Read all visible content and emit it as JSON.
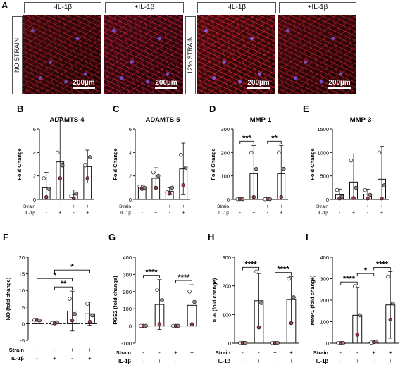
{
  "panel_a": {
    "letter": "A",
    "conditions": [
      "-IL-1β",
      "+IL-1β",
      "-IL-1β",
      "+IL-1β"
    ],
    "row_labels": [
      "NO STRAIN",
      "12% STRAIN"
    ],
    "scale_bar_text": "200µm"
  },
  "chart_data": [
    {
      "letter": "B",
      "type": "bar",
      "title": "ADAMTS-4",
      "ylabel": "Fold Change",
      "ylim": [
        0,
        6
      ],
      "yticks": [
        0,
        2,
        4,
        6
      ],
      "values": [
        1,
        3.2,
        0.4,
        2.8
      ],
      "err": [
        1.3,
        3.8,
        0.4,
        1.4
      ],
      "points": [
        [
          1.8,
          0.2,
          0.9
        ],
        [
          4.0,
          1.8,
          2.9
        ],
        [
          0.3,
          0.1,
          0.5
        ],
        [
          2.9,
          1.8,
          3.6
        ]
      ],
      "rows": [
        {
          "label": "Strain",
          "signs": [
            "-",
            "-",
            "+",
            "+"
          ]
        },
        {
          "label": "IL-1β",
          "signs": [
            "-",
            "+",
            "-",
            "+"
          ]
        }
      ],
      "sig": []
    },
    {
      "letter": "C",
      "type": "bar",
      "title": "ADAMTS-5",
      "ylabel": "Fold Change",
      "ylim": [
        0,
        6
      ],
      "yticks": [
        0,
        2,
        4,
        6
      ],
      "values": [
        1,
        1.8,
        0.7,
        2.6
      ],
      "err": [
        0.2,
        0.9,
        0.3,
        2.2
      ],
      "points": [
        [
          1.1,
          0.9,
          1.0
        ],
        [
          2.3,
          1.0,
          2.0
        ],
        [
          0.6,
          0.5,
          1.0
        ],
        [
          3.8,
          1.2,
          2.7
        ]
      ],
      "rows": [
        {
          "label": "Strain",
          "signs": [
            "-",
            "-",
            "+",
            "+"
          ]
        },
        {
          "label": "IL-1β",
          "signs": [
            "-",
            "+",
            "-",
            "+"
          ]
        }
      ],
      "sig": []
    },
    {
      "letter": "D",
      "type": "bar",
      "title": "MMP-1",
      "ylabel": "Fold Change",
      "ylim": [
        0,
        300
      ],
      "yticks": [
        0,
        100,
        200,
        300
      ],
      "values": [
        1,
        110,
        1,
        110
      ],
      "err": [
        3,
        120,
        3,
        120
      ],
      "points": [
        [
          1,
          2,
          1
        ],
        [
          200,
          10,
          130
        ],
        [
          1,
          2,
          1
        ],
        [
          200,
          10,
          130
        ]
      ],
      "rows": [
        {
          "label": "Strain",
          "signs": [
            "-",
            "-",
            "+",
            "+"
          ]
        },
        {
          "label": "IL-1β",
          "signs": [
            "-",
            "+",
            "-",
            "+"
          ]
        }
      ],
      "sig": [
        {
          "from": 0,
          "to": 1,
          "label": "***"
        },
        {
          "from": 2,
          "to": 3,
          "label": "**"
        }
      ]
    },
    {
      "letter": "E",
      "type": "bar",
      "title": "MMP-3",
      "ylabel": "Fold Change",
      "ylim": [
        0,
        1500
      ],
      "yticks": [
        0,
        500,
        1000,
        1500
      ],
      "values": [
        100,
        370,
        110,
        430
      ],
      "err": [
        120,
        600,
        110,
        700
      ],
      "points": [
        [
          200,
          20,
          60
        ],
        [
          830,
          30,
          250
        ],
        [
          200,
          20,
          100
        ],
        [
          1000,
          20,
          300
        ]
      ],
      "rows": [
        {
          "label": "Strain",
          "signs": [
            "-",
            "-",
            "+",
            "+"
          ]
        },
        {
          "label": "IL-1β",
          "signs": [
            "-",
            "+",
            "-",
            "+"
          ]
        }
      ],
      "sig": []
    },
    {
      "letter": "F",
      "type": "bar",
      "title": "",
      "ylabel": "NO (fold change)",
      "ylim": [
        -5,
        20
      ],
      "yticks": [
        -5,
        0,
        5,
        10,
        15,
        20
      ],
      "values": [
        1,
        0.2,
        3.8,
        3
      ],
      "err": [
        0.3,
        0.3,
        6,
        3.5
      ],
      "points": [
        [
          1.2,
          1.2,
          1.0
        ],
        [
          0.2,
          0.1,
          0.4
        ],
        [
          7.5,
          1.0,
          2.9
        ],
        [
          6.0,
          0.6,
          2.5
        ]
      ],
      "rows": [
        {
          "label": "Strain",
          "signs": [
            "-",
            "-",
            "+",
            "+"
          ]
        },
        {
          "label": "IL-1β",
          "signs": [
            "-",
            "+",
            "-",
            "+"
          ]
        }
      ],
      "sig": [
        {
          "from": 1,
          "to": 2,
          "label": "**",
          "level": 0
        },
        {
          "from": 0,
          "to": 2,
          "label": "*",
          "level": 1
        },
        {
          "from": 1,
          "to": 3,
          "label": "*",
          "level": 2
        }
      ]
    },
    {
      "letter": "G",
      "type": "bar",
      "title": "",
      "ylabel": "PGE2 (fold change)",
      "ylim": [
        -100,
        400
      ],
      "yticks": [
        -100,
        0,
        100,
        200,
        300,
        400
      ],
      "values": [
        1,
        125,
        1,
        120
      ],
      "err": [
        2,
        145,
        2,
        120
      ],
      "points": [
        [
          1,
          1,
          1
        ],
        [
          210,
          10,
          150
        ],
        [
          1,
          1,
          1
        ],
        [
          200,
          10,
          140
        ]
      ],
      "rows": [
        {
          "label": "Strain",
          "signs": [
            "-",
            "-",
            "+",
            "+"
          ]
        },
        {
          "label": "IL-1β",
          "signs": [
            "-",
            "+",
            "-",
            "+"
          ]
        }
      ],
      "sig": [
        {
          "from": 0,
          "to": 1,
          "label": "****"
        },
        {
          "from": 2,
          "to": 3,
          "label": "****"
        }
      ]
    },
    {
      "letter": "H",
      "type": "bar",
      "title": "",
      "ylabel": "IL-6 (fold change)",
      "ylim": [
        0,
        300
      ],
      "yticks": [
        0,
        100,
        200,
        300
      ],
      "values": [
        1,
        148,
        1,
        152
      ],
      "err": [
        2,
        95,
        2,
        80
      ],
      "points": [
        [
          1,
          1,
          1
        ],
        [
          250,
          55,
          140
        ],
        [
          1,
          1,
          1
        ],
        [
          225,
          70,
          160
        ]
      ],
      "rows": [
        {
          "label": "Strain",
          "signs": [
            "-",
            "-",
            "+",
            "+"
          ]
        },
        {
          "label": "IL-1β",
          "signs": [
            "-",
            "+",
            "-",
            "+"
          ]
        }
      ],
      "sig": [
        {
          "from": 0,
          "to": 1,
          "label": "****"
        },
        {
          "from": 2,
          "to": 3,
          "label": "****"
        }
      ]
    },
    {
      "letter": "I",
      "type": "bar",
      "title": "",
      "ylabel": "MMP1 (fold change)",
      "ylim": [
        0,
        400
      ],
      "yticks": [
        0,
        100,
        200,
        300,
        400
      ],
      "values": [
        1,
        130,
        5,
        178
      ],
      "err": [
        2,
        130,
        3,
        155
      ],
      "points": [
        [
          1,
          1,
          1
        ],
        [
          265,
          40,
          130
        ],
        [
          3,
          5,
          8
        ],
        [
          310,
          110,
          185
        ]
      ],
      "rows": [
        {
          "label": "Strain",
          "signs": [
            "-",
            "-",
            "+",
            "+"
          ]
        },
        {
          "label": "IL-1β",
          "signs": [
            "-",
            "+",
            "-",
            "+"
          ]
        }
      ],
      "sig": [
        {
          "from": 0,
          "to": 1,
          "label": "****",
          "level": 0
        },
        {
          "from": 2,
          "to": 3,
          "label": "****",
          "level": 0
        },
        {
          "from": 1,
          "to": 2,
          "label": "*",
          "level": 1
        }
      ]
    }
  ],
  "colors": {
    "dot_open": "#ffffff",
    "dot_filled": "#9b3a4a",
    "dot_dark": "#9a8a7a",
    "bar_stroke": "#111111"
  }
}
